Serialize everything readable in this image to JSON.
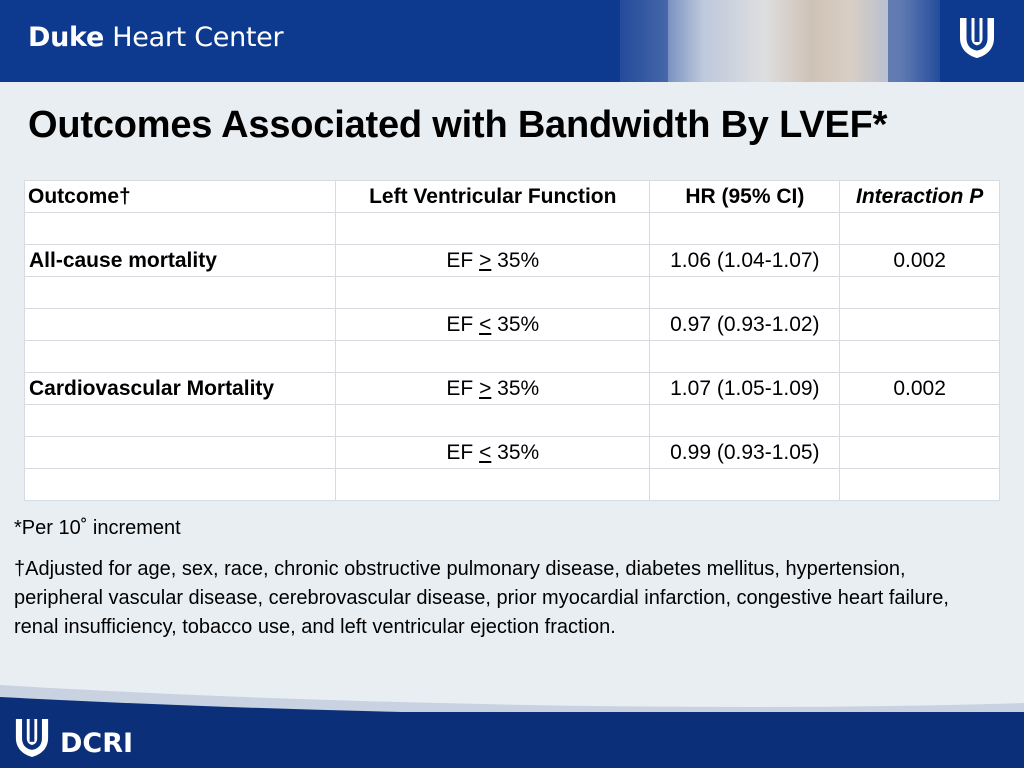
{
  "header": {
    "brand_bold": "Duke",
    "brand_rest": "Heart Center"
  },
  "title": "Outcomes Associated with Bandwidth By LVEF*",
  "table": {
    "headers": [
      "Outcome†",
      "Left Ventricular Function",
      "HR (95% CI)",
      "Interaction P"
    ],
    "rows": [
      {
        "outcome": "",
        "lvf_prefix": "",
        "lvf_op": "",
        "lvf_suffix": "",
        "hr": "",
        "p": ""
      },
      {
        "outcome": "All-cause mortality",
        "lvf_prefix": "EF ",
        "lvf_op": ">",
        "lvf_suffix": " 35%",
        "hr": "1.06 (1.04-1.07)",
        "p": "0.002"
      },
      {
        "outcome": "",
        "lvf_prefix": "",
        "lvf_op": "",
        "lvf_suffix": "",
        "hr": "",
        "p": ""
      },
      {
        "outcome": "",
        "lvf_prefix": "EF ",
        "lvf_op": "<",
        "lvf_suffix": " 35%",
        "hr": "0.97 (0.93-1.02)",
        "p": ""
      },
      {
        "outcome": "",
        "lvf_prefix": "",
        "lvf_op": "",
        "lvf_suffix": "",
        "hr": "",
        "p": ""
      },
      {
        "outcome": "Cardiovascular Mortality",
        "lvf_prefix": "EF ",
        "lvf_op": ">",
        "lvf_suffix": " 35%",
        "hr": "1.07 (1.05-1.09)",
        "p": "0.002"
      },
      {
        "outcome": "",
        "lvf_prefix": "",
        "lvf_op": "",
        "lvf_suffix": "",
        "hr": "",
        "p": ""
      },
      {
        "outcome": "",
        "lvf_prefix": "EF ",
        "lvf_op": "<",
        "lvf_suffix": " 35%",
        "hr": "0.99 (0.93-1.05)",
        "p": ""
      },
      {
        "outcome": "",
        "lvf_prefix": "",
        "lvf_op": "",
        "lvf_suffix": "",
        "hr": "",
        "p": ""
      }
    ]
  },
  "footnotes": {
    "per": "*Per 10˚   increment",
    "adjusted": "†Adjusted for age, sex, race, chronic obstructive pulmonary disease, diabetes mellitus, hypertension, peripheral vascular disease, cerebrovascular disease, prior myocardial infarction, congestive heart failure, renal insufficiency, tobacco use, and left ventricular ejection fraction."
  },
  "footer": {
    "org": "DCRI"
  },
  "colors": {
    "header_blue": "#0d3a8e",
    "footer_blue": "#0c2f7a",
    "background": "#e9eef2"
  },
  "icons": {
    "top_logo": "duke-shield-icon",
    "footer_logo": "duke-shield-icon"
  }
}
